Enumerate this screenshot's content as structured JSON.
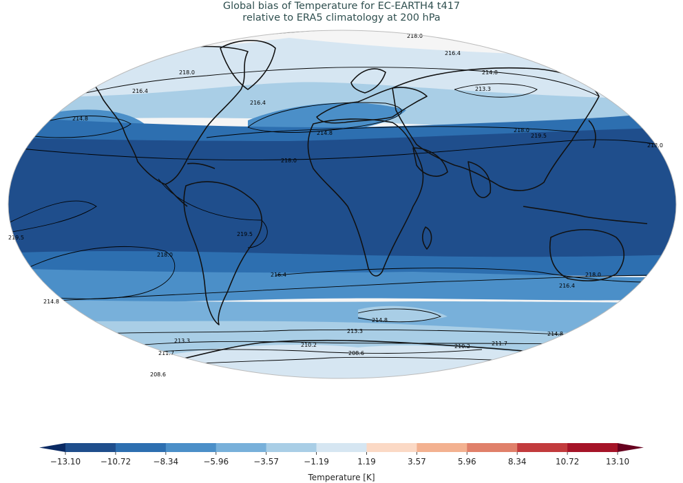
{
  "title_line1": "Global bias of Temperature for EC-EARTH4 t417",
  "title_line2": "relative to ERA5 climatology at 200 hPa",
  "colorbar": {
    "label": "Temperature [K]",
    "ticks": [
      "−13.10",
      "−10.72",
      "−8.34",
      "−5.96",
      "−3.57",
      "−1.19",
      "1.19",
      "3.57",
      "5.96",
      "8.34",
      "10.72",
      "13.10"
    ],
    "colors": [
      "#1f4e8c",
      "#2d6fb0",
      "#4b8fc8",
      "#78b0da",
      "#a9cee6",
      "#d6e6f2",
      "#f5f5f5",
      "#fbd9c5",
      "#f3b190",
      "#e0806a",
      "#c23b3d",
      "#a51428"
    ],
    "under_color": "#0a2a63",
    "over_color": "#67001f"
  },
  "contours": [
    {
      "label": "218.0"
    },
    {
      "label": "216.4"
    },
    {
      "label": "218.0"
    },
    {
      "label": "214.8"
    },
    {
      "label": "213.3"
    },
    {
      "label": "216.4"
    },
    {
      "label": "216.4"
    },
    {
      "label": "214.8"
    },
    {
      "label": "214.8"
    },
    {
      "label": "218.0"
    },
    {
      "label": "219.5"
    },
    {
      "label": "218.0"
    },
    {
      "label": "218.0"
    },
    {
      "label": "219.5"
    },
    {
      "label": "219.5"
    },
    {
      "label": "218.0"
    },
    {
      "label": "216.4"
    },
    {
      "label": "214.8"
    },
    {
      "label": "214.8"
    },
    {
      "label": "213.3"
    },
    {
      "label": "214.8"
    },
    {
      "label": "218.0"
    },
    {
      "label": "216.4"
    },
    {
      "label": "213.3"
    },
    {
      "label": "210.2"
    },
    {
      "label": "211.7"
    },
    {
      "label": "208.6"
    },
    {
      "label": "211.7"
    },
    {
      "label": "210.2"
    },
    {
      "label": "208.6"
    }
  ]
}
